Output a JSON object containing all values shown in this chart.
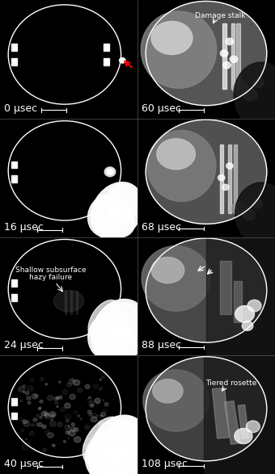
{
  "figure_width": 3.4,
  "figure_height": 5.87,
  "dpi": 100,
  "background_color": "#000000",
  "grid_rows": 4,
  "grid_cols": 2,
  "panel_labels": [
    "0 μsec",
    "60 μsec",
    "16 μsec",
    "68 μsec",
    "24 μsec",
    "88 μsec",
    "40 μsec",
    "108 μsec"
  ],
  "label_color": "#ffffff",
  "label_fontsize": 9,
  "annotation_fontsize": 6.5,
  "ellipse_color": "#ffffff",
  "ellipse_linewidth": 1.0,
  "separator_color": "#555555",
  "separator_linewidth": 0.5
}
